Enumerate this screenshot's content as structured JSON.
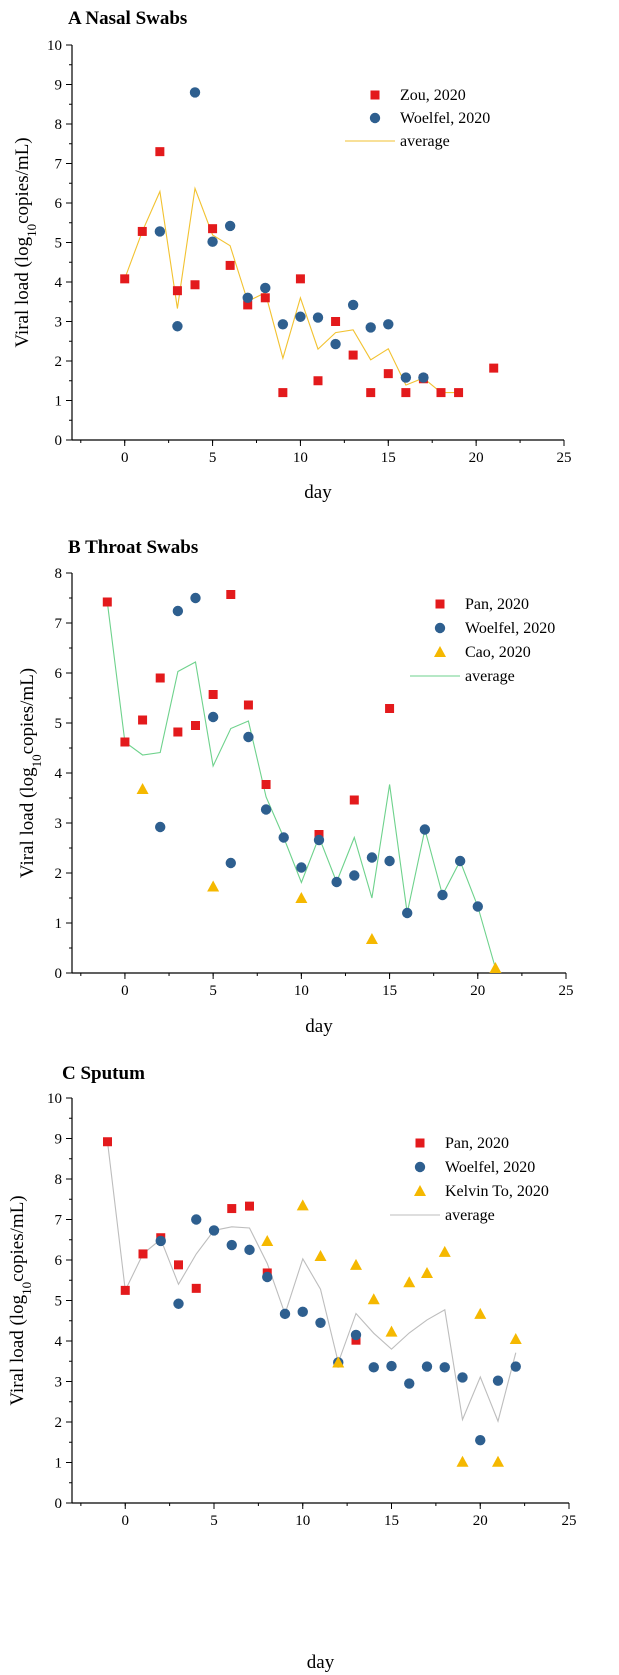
{
  "chart_data": [
    {
      "type": "scatter",
      "title": "A Nasal Swabs",
      "xlabel": "day",
      "ylabel_main": "Viral load (log",
      "ylabel_sub": "10",
      "ylabel_tail": "copies/mL)",
      "xlim": [
        -3,
        25
      ],
      "ylim": [
        0,
        10
      ],
      "xticks": [
        0,
        5,
        10,
        15,
        20,
        25
      ],
      "yticks": [
        0,
        1,
        2,
        3,
        4,
        5,
        6,
        7,
        8,
        9,
        10
      ],
      "legend_position": "top-right",
      "series": [
        {
          "name": "Zou, 2020",
          "marker": "square",
          "color": "#e31a1c",
          "points": [
            [
              0,
              4.08
            ],
            [
              1,
              5.28
            ],
            [
              2,
              7.3
            ],
            [
              3,
              3.78
            ],
            [
              4,
              3.93
            ],
            [
              5,
              5.35
            ],
            [
              6,
              4.42
            ],
            [
              7,
              3.42
            ],
            [
              8,
              3.6
            ],
            [
              9,
              1.2
            ],
            [
              10,
              4.08
            ],
            [
              11,
              1.5
            ],
            [
              12,
              3.0
            ],
            [
              13,
              2.15
            ],
            [
              14,
              1.2
            ],
            [
              15,
              1.68
            ],
            [
              16,
              1.2
            ],
            [
              17,
              1.55
            ],
            [
              18,
              1.2
            ],
            [
              19,
              1.2
            ],
            [
              21,
              1.82
            ]
          ]
        },
        {
          "name": "Woelfel, 2020",
          "marker": "circle",
          "color": "#2e5f8f",
          "points": [
            [
              2,
              5.28
            ],
            [
              3,
              2.88
            ],
            [
              4,
              8.8
            ],
            [
              5,
              5.02
            ],
            [
              6,
              5.42
            ],
            [
              7,
              3.6
            ],
            [
              8,
              3.85
            ],
            [
              9,
              2.93
            ],
            [
              10,
              3.12
            ],
            [
              11,
              3.1
            ],
            [
              12,
              2.43
            ],
            [
              13,
              3.42
            ],
            [
              14,
              2.85
            ],
            [
              15,
              2.93
            ],
            [
              16,
              1.58
            ],
            [
              17,
              1.58
            ]
          ]
        },
        {
          "name": "average",
          "marker": "line",
          "color": "#f2c230",
          "points": [
            [
              0,
              4.08
            ],
            [
              1,
              5.28
            ],
            [
              2,
              6.29
            ],
            [
              3,
              3.33
            ],
            [
              4,
              6.37
            ],
            [
              5,
              5.19
            ],
            [
              6,
              4.92
            ],
            [
              7,
              3.51
            ],
            [
              8,
              3.73
            ],
            [
              9,
              2.07
            ],
            [
              10,
              3.6
            ],
            [
              11,
              2.3
            ],
            [
              12,
              2.72
            ],
            [
              13,
              2.79
            ],
            [
              14,
              2.03
            ],
            [
              15,
              2.31
            ],
            [
              16,
              1.39
            ],
            [
              17,
              1.57
            ],
            [
              18,
              1.2
            ],
            [
              19,
              1.2
            ]
          ]
        }
      ]
    },
    {
      "type": "scatter",
      "title": "B Throat Swabs",
      "xlabel": "day",
      "ylabel_main": "Viral load (log",
      "ylabel_sub": "10",
      "ylabel_tail": "copies/mL)",
      "xlim": [
        -3,
        25
      ],
      "ylim": [
        0,
        8
      ],
      "xticks": [
        0,
        5,
        10,
        15,
        20,
        25
      ],
      "yticks": [
        0,
        1,
        2,
        3,
        4,
        5,
        6,
        7,
        8
      ],
      "legend_position": "top-right",
      "series": [
        {
          "name": "Pan, 2020",
          "marker": "square",
          "color": "#e31a1c",
          "points": [
            [
              -1,
              7.42
            ],
            [
              0,
              4.62
            ],
            [
              1,
              5.06
            ],
            [
              2,
              5.9
            ],
            [
              3,
              4.82
            ],
            [
              4,
              4.95
            ],
            [
              5,
              5.57
            ],
            [
              6,
              7.57
            ],
            [
              7,
              5.36
            ],
            [
              8,
              3.77
            ],
            [
              11,
              2.77
            ],
            [
              13,
              3.46
            ],
            [
              15,
              5.29
            ]
          ]
        },
        {
          "name": "Woelfel, 2020",
          "marker": "circle",
          "color": "#2e5f8f",
          "points": [
            [
              2,
              2.92
            ],
            [
              3,
              7.24
            ],
            [
              4,
              7.5
            ],
            [
              5,
              5.12
            ],
            [
              6,
              2.2
            ],
            [
              7,
              4.72
            ],
            [
              8,
              3.27
            ],
            [
              9,
              2.71
            ],
            [
              10,
              2.11
            ],
            [
              11,
              2.66
            ],
            [
              12,
              1.82
            ],
            [
              13,
              1.95
            ],
            [
              14,
              2.31
            ],
            [
              15,
              2.24
            ],
            [
              16,
              1.2
            ],
            [
              17,
              2.87
            ],
            [
              18,
              1.56
            ],
            [
              19,
              2.24
            ],
            [
              20,
              1.33
            ]
          ]
        },
        {
          "name": "Cao, 2020",
          "marker": "triangle",
          "color": "#f5b800",
          "points": [
            [
              1,
              3.68
            ],
            [
              5,
              1.73
            ],
            [
              10,
              1.5
            ],
            [
              14,
              0.68
            ],
            [
              21,
              0.1
            ]
          ]
        },
        {
          "name": "average",
          "marker": "line",
          "color": "#6ed28c",
          "points": [
            [
              -1,
              7.42
            ],
            [
              0,
              4.62
            ],
            [
              1,
              4.36
            ],
            [
              2,
              4.41
            ],
            [
              3,
              6.03
            ],
            [
              4,
              6.22
            ],
            [
              5,
              4.14
            ],
            [
              6,
              4.89
            ],
            [
              7,
              5.04
            ],
            [
              8,
              3.52
            ],
            [
              9,
              2.71
            ],
            [
              10,
              1.81
            ],
            [
              11,
              2.72
            ],
            [
              12,
              1.82
            ],
            [
              13,
              2.71
            ],
            [
              14,
              1.5
            ],
            [
              15,
              3.77
            ],
            [
              16,
              1.2
            ],
            [
              17,
              2.87
            ],
            [
              18,
              1.56
            ],
            [
              19,
              2.24
            ],
            [
              20,
              1.33
            ],
            [
              21,
              0.1
            ]
          ]
        }
      ]
    },
    {
      "type": "scatter",
      "title": "C Sputum",
      "xlabel": "day",
      "ylabel_main": "Viral load (log",
      "ylabel_sub": "10",
      "ylabel_tail": "copies/mL)",
      "xlim": [
        -3,
        25
      ],
      "ylim": [
        0,
        10
      ],
      "xticks": [
        0,
        5,
        10,
        15,
        20,
        25
      ],
      "yticks": [
        0,
        1,
        2,
        3,
        4,
        5,
        6,
        7,
        8,
        9,
        10
      ],
      "legend_position": "top-right",
      "series": [
        {
          "name": "Pan, 2020",
          "marker": "square",
          "color": "#e31a1c",
          "points": [
            [
              -1,
              8.92
            ],
            [
              0,
              5.25
            ],
            [
              1,
              6.15
            ],
            [
              2,
              6.55
            ],
            [
              3,
              5.88
            ],
            [
              4,
              5.3
            ],
            [
              6,
              7.27
            ],
            [
              7,
              7.33
            ],
            [
              8,
              5.68
            ],
            [
              13,
              4.02
            ]
          ]
        },
        {
          "name": "Woelfel, 2020",
          "marker": "circle",
          "color": "#2e5f8f",
          "points": [
            [
              2,
              6.47
            ],
            [
              3,
              4.92
            ],
            [
              4,
              7.0
            ],
            [
              5,
              6.73
            ],
            [
              6,
              6.37
            ],
            [
              7,
              6.25
            ],
            [
              8,
              5.58
            ],
            [
              9,
              4.67
            ],
            [
              10,
              4.72
            ],
            [
              11,
              4.45
            ],
            [
              12,
              3.47
            ],
            [
              13,
              4.15
            ],
            [
              14,
              3.35
            ],
            [
              15,
              3.38
            ],
            [
              16,
              2.95
            ],
            [
              17,
              3.37
            ],
            [
              18,
              3.35
            ],
            [
              19,
              3.1
            ],
            [
              20,
              1.55
            ],
            [
              21,
              3.02
            ],
            [
              22,
              3.37
            ]
          ]
        },
        {
          "name": "Kelvin To, 2020",
          "marker": "triangle",
          "color": "#f5b800",
          "points": [
            [
              8,
              6.47
            ],
            [
              10,
              7.35
            ],
            [
              11,
              6.1
            ],
            [
              12,
              3.47
            ],
            [
              13,
              5.88
            ],
            [
              14,
              5.03
            ],
            [
              15,
              4.23
            ],
            [
              16,
              5.45
            ],
            [
              17,
              5.68
            ],
            [
              18,
              6.2
            ],
            [
              19,
              1.02
            ],
            [
              20,
              4.67
            ],
            [
              21,
              1.02
            ],
            [
              22,
              4.05
            ]
          ]
        },
        {
          "name": "average",
          "marker": "line",
          "color": "#bdbdbd",
          "points": [
            [
              -1,
              8.92
            ],
            [
              0,
              5.25
            ],
            [
              1,
              6.15
            ],
            [
              2,
              6.51
            ],
            [
              3,
              5.4
            ],
            [
              4,
              6.15
            ],
            [
              5,
              6.73
            ],
            [
              6,
              6.82
            ],
            [
              7,
              6.79
            ],
            [
              8,
              5.91
            ],
            [
              9,
              4.67
            ],
            [
              10,
              6.03
            ],
            [
              11,
              5.28
            ],
            [
              12,
              3.47
            ],
            [
              13,
              4.68
            ],
            [
              14,
              4.19
            ],
            [
              15,
              3.8
            ],
            [
              16,
              4.2
            ],
            [
              17,
              4.52
            ],
            [
              18,
              4.77
            ],
            [
              19,
              2.06
            ],
            [
              20,
              3.11
            ],
            [
              21,
              2.02
            ],
            [
              22,
              3.71
            ]
          ]
        }
      ]
    }
  ]
}
